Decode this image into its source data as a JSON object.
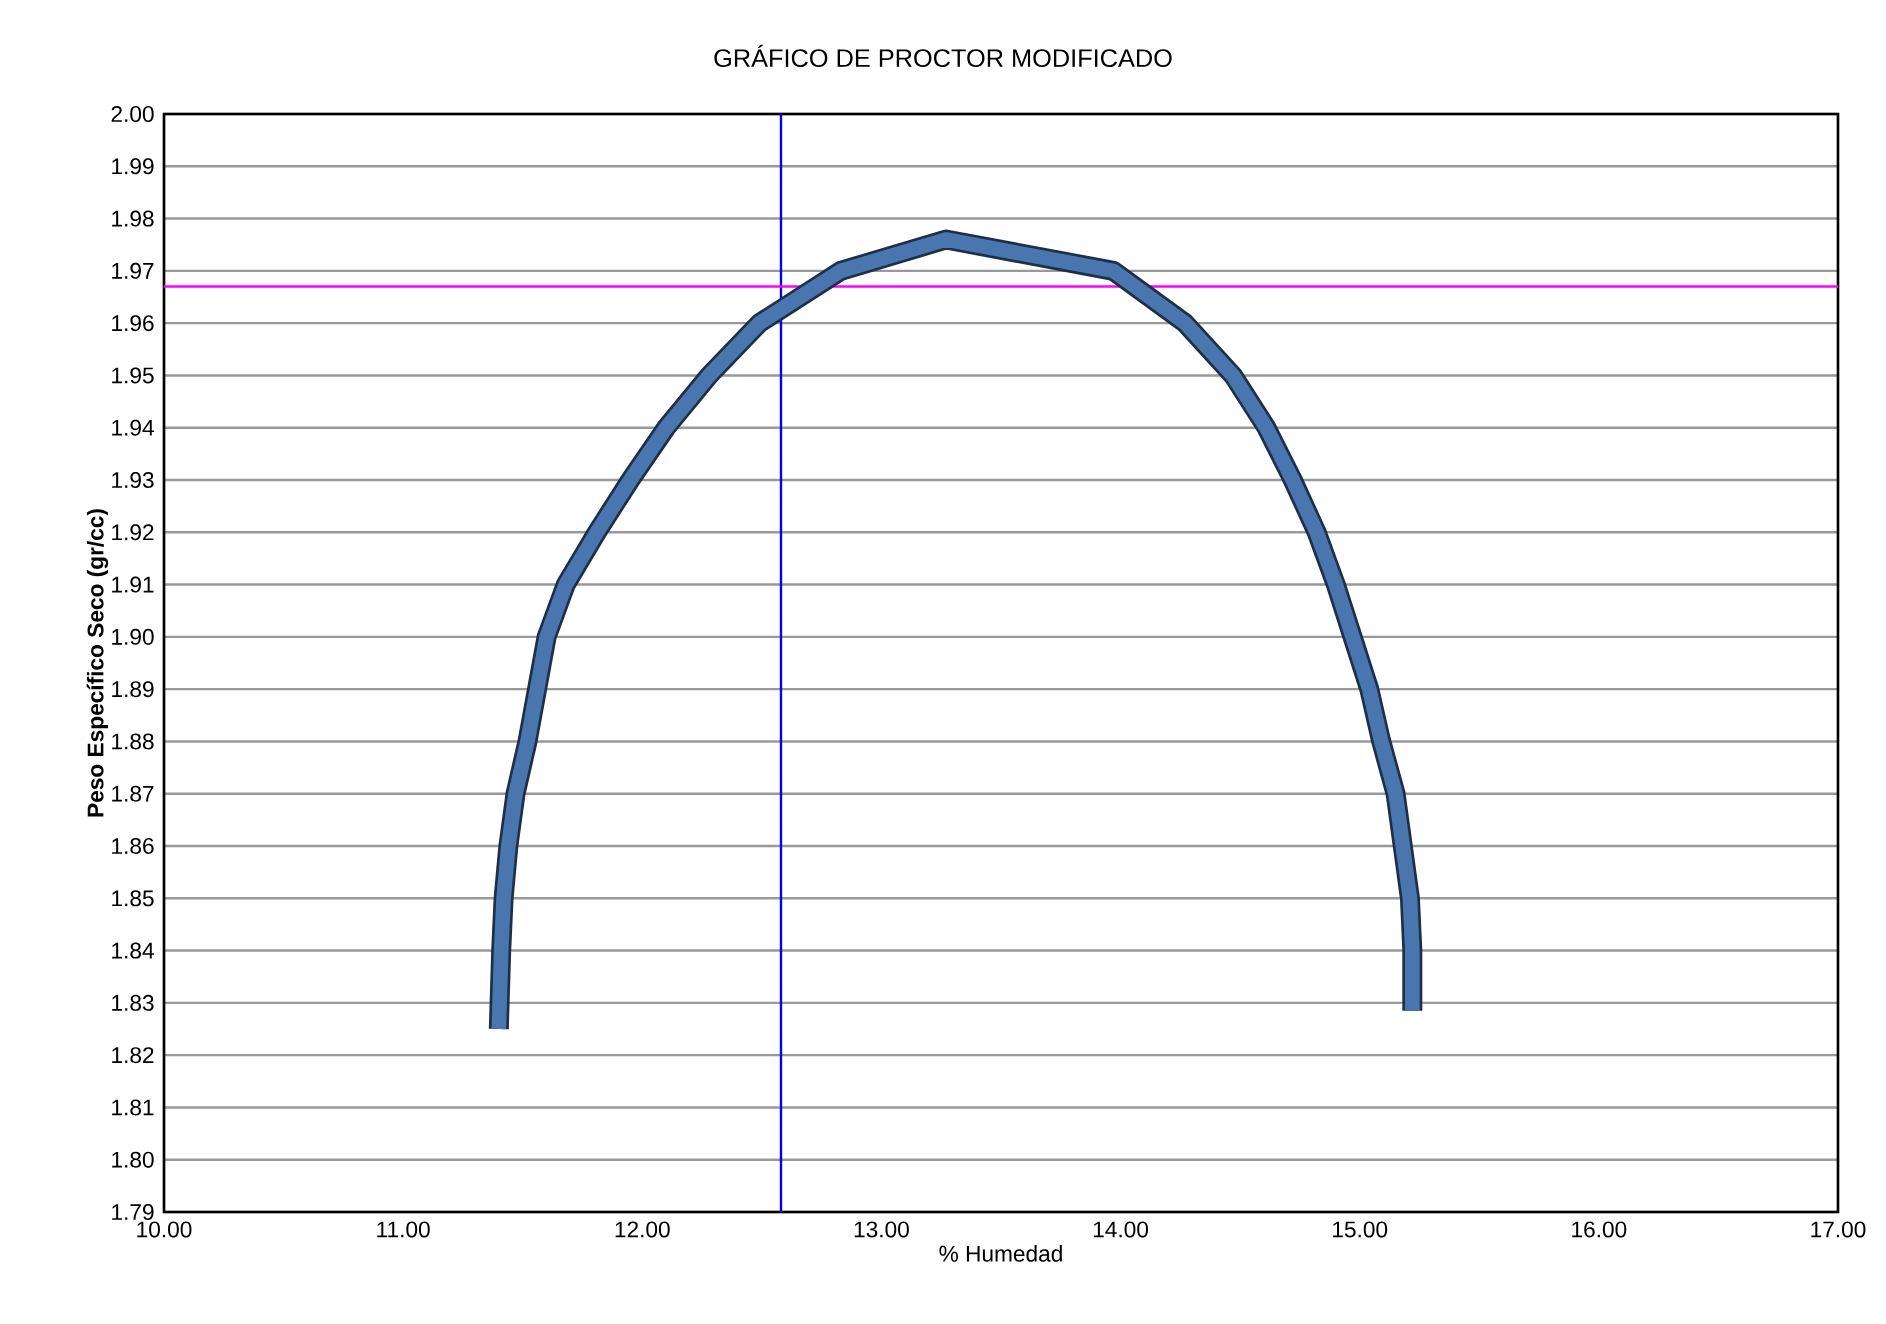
{
  "chart_data": {
    "type": "line",
    "title": "GRÁFICO DE PROCTOR MODIFICADO",
    "xlabel": "% Humedad",
    "ylabel": "Peso Específico Seco (gr/cc)",
    "xlim": [
      10,
      17
    ],
    "xticks": [
      {
        "value": 10,
        "label": "10.00"
      },
      {
        "value": 11,
        "label": "11.00"
      },
      {
        "value": 12,
        "label": "12.00"
      },
      {
        "value": 13,
        "label": "13.00"
      },
      {
        "value": 14,
        "label": "14.00"
      },
      {
        "value": 15,
        "label": "15.00"
      },
      {
        "value": 16,
        "label": "16.00"
      },
      {
        "value": 17,
        "label": "17.00"
      }
    ],
    "ylim": [
      1.79,
      2.0
    ],
    "yticks": [
      {
        "value": 1.79,
        "label": "1.79"
      },
      {
        "value": 1.8,
        "label": "1.80"
      },
      {
        "value": 1.81,
        "label": "1.81"
      },
      {
        "value": 1.82,
        "label": "1.82"
      },
      {
        "value": 1.83,
        "label": "1.83"
      },
      {
        "value": 1.84,
        "label": "1.84"
      },
      {
        "value": 1.85,
        "label": "1.85"
      },
      {
        "value": 1.86,
        "label": "1.86"
      },
      {
        "value": 1.87,
        "label": "1.87"
      },
      {
        "value": 1.88,
        "label": "1.88"
      },
      {
        "value": 1.89,
        "label": "1.89"
      },
      {
        "value": 1.9,
        "label": "1.90"
      },
      {
        "value": 1.91,
        "label": "1.91"
      },
      {
        "value": 1.92,
        "label": "1.92"
      },
      {
        "value": 1.93,
        "label": "1.93"
      },
      {
        "value": 1.94,
        "label": "1.94"
      },
      {
        "value": 1.95,
        "label": "1.95"
      },
      {
        "value": 1.96,
        "label": "1.96"
      },
      {
        "value": 1.97,
        "label": "1.97"
      },
      {
        "value": 1.98,
        "label": "1.98"
      },
      {
        "value": 1.99,
        "label": "1.99"
      },
      {
        "value": 2.0,
        "label": "2.00"
      }
    ],
    "grid": "y",
    "series": [
      {
        "color": "#4a76b0",
        "x": [
          11.4,
          11.41,
          11.42,
          11.44,
          11.47,
          11.52,
          11.56,
          11.6,
          11.68,
          11.81,
          11.95,
          12.1,
          12.28,
          12.49,
          12.83,
          13.27,
          13.97,
          14.27,
          14.47,
          14.61,
          14.72,
          14.82,
          14.9,
          14.97,
          15.04,
          15.09,
          15.15,
          15.18,
          15.21,
          15.22,
          15.22
        ],
        "values": [
          1.825,
          1.84,
          1.85,
          1.86,
          1.87,
          1.88,
          1.89,
          1.9,
          1.91,
          1.92,
          1.93,
          1.94,
          1.95,
          1.96,
          1.97,
          1.976,
          1.97,
          1.96,
          1.95,
          1.94,
          1.93,
          1.92,
          1.91,
          1.9,
          1.89,
          1.88,
          1.87,
          1.86,
          1.85,
          1.84,
          1.8285
        ]
      }
    ],
    "ref_lines": [
      {
        "axis": "x",
        "value": 12.58,
        "color": "#0000ff"
      },
      {
        "axis": "y",
        "value": 1.967,
        "color": "#ff00ff"
      }
    ]
  }
}
